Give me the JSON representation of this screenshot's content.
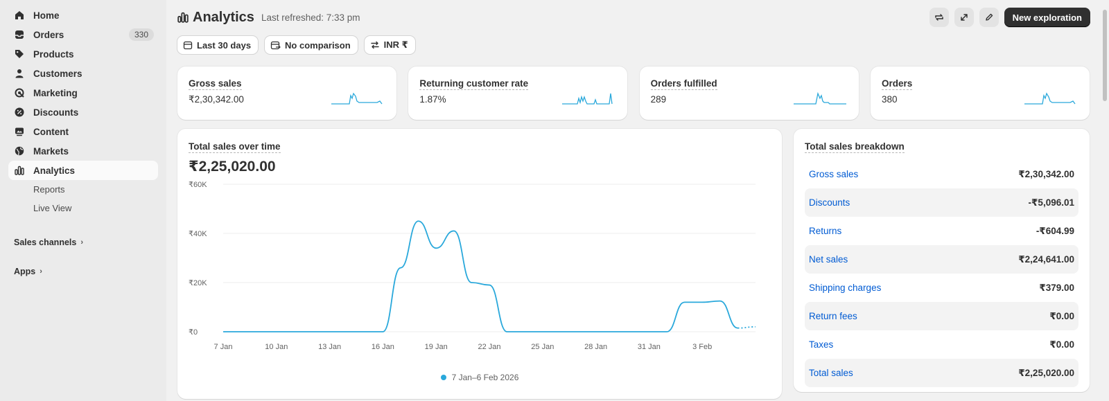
{
  "sidebar": {
    "items": [
      {
        "label": "Home",
        "icon": "home-icon"
      },
      {
        "label": "Orders",
        "icon": "inbox-icon",
        "badge": "330"
      },
      {
        "label": "Products",
        "icon": "tag-icon"
      },
      {
        "label": "Customers",
        "icon": "person-icon"
      },
      {
        "label": "Marketing",
        "icon": "target-icon"
      },
      {
        "label": "Discounts",
        "icon": "discount-icon"
      },
      {
        "label": "Content",
        "icon": "image-icon"
      },
      {
        "label": "Markets",
        "icon": "globe-icon"
      },
      {
        "label": "Analytics",
        "icon": "bar-chart-icon"
      }
    ],
    "sub_items": [
      "Reports",
      "Live View"
    ],
    "sales_channels": "Sales channels",
    "apps": "Apps"
  },
  "header": {
    "title": "Analytics",
    "refreshed": "Last refreshed: 7:33 pm",
    "new_exploration": "New exploration"
  },
  "filters": {
    "date_range": "Last 30 days",
    "comparison": "No comparison",
    "currency": "INR ₹"
  },
  "metrics": [
    {
      "label": "Gross sales",
      "value": "₹2,30,342.00"
    },
    {
      "label": "Returning customer rate",
      "value": "1.87%"
    },
    {
      "label": "Orders fulfilled",
      "value": "289"
    },
    {
      "label": "Orders",
      "value": "380"
    }
  ],
  "sales_over_time": {
    "title": "Total sales over time",
    "total": "₹2,25,020.00",
    "legend": "7 Jan–6 Feb 2026"
  },
  "chart_data": {
    "type": "line",
    "title": "Total sales over time",
    "xlabel": "",
    "ylabel": "",
    "ylim": [
      0,
      60000
    ],
    "y_ticks": [
      "₹0",
      "₹20K",
      "₹40K",
      "₹60K"
    ],
    "x_ticks": [
      "7 Jan",
      "10 Jan",
      "13 Jan",
      "16 Jan",
      "19 Jan",
      "22 Jan",
      "25 Jan",
      "28 Jan",
      "31 Jan",
      "3 Feb"
    ],
    "grid": true,
    "x": [
      "7 Jan",
      "8 Jan",
      "9 Jan",
      "10 Jan",
      "11 Jan",
      "12 Jan",
      "13 Jan",
      "14 Jan",
      "15 Jan",
      "16 Jan",
      "17 Jan",
      "18 Jan",
      "19 Jan",
      "20 Jan",
      "21 Jan",
      "22 Jan",
      "23 Jan",
      "24 Jan",
      "25 Jan",
      "26 Jan",
      "27 Jan",
      "28 Jan",
      "29 Jan",
      "30 Jan",
      "31 Jan",
      "1 Feb",
      "2 Feb",
      "3 Feb",
      "4 Feb",
      "5 Feb",
      "6 Feb"
    ],
    "series": [
      {
        "name": "7 Jan–6 Feb 2026",
        "color": "#29a8db",
        "values": [
          0,
          0,
          0,
          0,
          0,
          0,
          0,
          0,
          0,
          0,
          26000,
          45000,
          34000,
          41000,
          20000,
          19000,
          0,
          0,
          0,
          0,
          0,
          0,
          0,
          0,
          0,
          0,
          12000,
          12000,
          12500,
          1500,
          2000
        ]
      }
    ]
  },
  "breakdown": {
    "title": "Total sales breakdown",
    "rows": [
      {
        "name": "Gross sales",
        "amount": "₹2,30,342.00"
      },
      {
        "name": "Discounts",
        "amount": "-₹5,096.01"
      },
      {
        "name": "Returns",
        "amount": "-₹604.99"
      },
      {
        "name": "Net sales",
        "amount": "₹2,24,641.00"
      },
      {
        "name": "Shipping charges",
        "amount": "₹379.00"
      },
      {
        "name": "Return fees",
        "amount": "₹0.00"
      },
      {
        "name": "Taxes",
        "amount": "₹0.00"
      },
      {
        "name": "Total sales",
        "amount": "₹2,25,020.00"
      }
    ]
  },
  "colors": {
    "accent": "#29a8db",
    "link": "#005bd3",
    "primary_button": "#303030"
  }
}
